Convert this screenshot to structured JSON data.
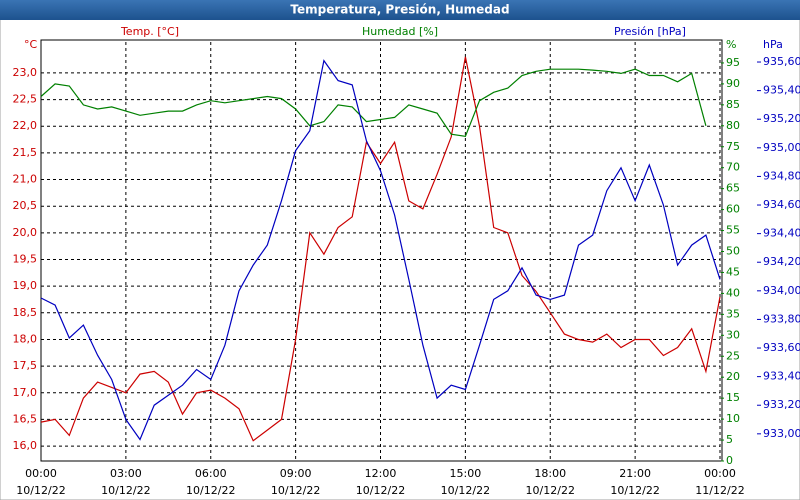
{
  "chart_data": {
    "type": "line",
    "title": "Temperatura, Presión, Humedad",
    "y_unit": "°C",
    "y2_unit": "%",
    "y3_unit": "hPa",
    "grid": true,
    "x": [
      0,
      0.5,
      1,
      1.5,
      2,
      2.5,
      3,
      3.5,
      4,
      4.5,
      5,
      5.5,
      6,
      6.5,
      7,
      7.5,
      8,
      8.5,
      9,
      9.5,
      10,
      10.5,
      11,
      11.5,
      12,
      12.5,
      13,
      13.5,
      14,
      14.5,
      15,
      15.5,
      16,
      16.5,
      17,
      17.5,
      18,
      18.5,
      19,
      19.5,
      20,
      20.5,
      21,
      21.5,
      22,
      22.5,
      23,
      23.5,
      24
    ],
    "xlim": [
      0,
      24
    ],
    "xticks": [
      {
        "value": 0,
        "label": "00:00",
        "date": "10/12/22"
      },
      {
        "value": 3,
        "label": "03:00",
        "date": "10/12/22"
      },
      {
        "value": 6,
        "label": "06:00",
        "date": "10/12/22"
      },
      {
        "value": 9,
        "label": "09:00",
        "date": "10/12/22"
      },
      {
        "value": 12,
        "label": "12:00",
        "date": "10/12/22"
      },
      {
        "value": 15,
        "label": "15:00",
        "date": "10/12/22"
      },
      {
        "value": 18,
        "label": "18:00",
        "date": "10/12/22"
      },
      {
        "value": 21,
        "label": "21:00",
        "date": "10/12/22"
      },
      {
        "value": 24,
        "label": "00:00",
        "date": "11/12/22"
      }
    ],
    "ylim": [
      15.72,
      23.58
    ],
    "yticks": [
      {
        "value": 16.0,
        "label": "16,0"
      },
      {
        "value": 16.5,
        "label": "16,5"
      },
      {
        "value": 17.0,
        "label": "17,0"
      },
      {
        "value": 17.5,
        "label": "17,5"
      },
      {
        "value": 18.0,
        "label": "18,0"
      },
      {
        "value": 18.5,
        "label": "18,5"
      },
      {
        "value": 19.0,
        "label": "19,0"
      },
      {
        "value": 19.5,
        "label": "19,5"
      },
      {
        "value": 20.0,
        "label": "20,0"
      },
      {
        "value": 20.5,
        "label": "20,5"
      },
      {
        "value": 21.0,
        "label": "21,0"
      },
      {
        "value": 21.5,
        "label": "21,5"
      },
      {
        "value": 22.0,
        "label": "22,0"
      },
      {
        "value": 22.5,
        "label": "22,5"
      },
      {
        "value": 23.0,
        "label": "23,0"
      }
    ],
    "y2lim": [
      0,
      100
    ],
    "y2ticks": [
      0,
      5,
      10,
      15,
      20,
      25,
      30,
      35,
      40,
      45,
      50,
      55,
      60,
      65,
      70,
      75,
      80,
      85,
      90,
      95
    ],
    "y3lim": [
      932.81,
      935.74
    ],
    "y3ticks": [
      {
        "value": 933.0,
        "label": "933,00"
      },
      {
        "value": 933.2,
        "label": "933,20"
      },
      {
        "value": 933.4,
        "label": "933,40"
      },
      {
        "value": 933.6,
        "label": "933,60"
      },
      {
        "value": 933.8,
        "label": "933,80"
      },
      {
        "value": 934.0,
        "label": "934,00"
      },
      {
        "value": 934.2,
        "label": "934,20"
      },
      {
        "value": 934.4,
        "label": "934,40"
      },
      {
        "value": 934.6,
        "label": "934,60"
      },
      {
        "value": 934.8,
        "label": "934,80"
      },
      {
        "value": 935.0,
        "label": "935,00"
      },
      {
        "value": 935.2,
        "label": "935,20"
      },
      {
        "value": 935.4,
        "label": "935,40"
      },
      {
        "value": 935.6,
        "label": "935,60"
      }
    ],
    "series": [
      {
        "name": "Temp. [°C]",
        "color": "#cc0000",
        "axis": "y",
        "values": [
          16.45,
          16.5,
          16.2,
          16.9,
          17.2,
          17.1,
          17.0,
          17.35,
          17.4,
          17.2,
          16.6,
          17.0,
          17.05,
          16.9,
          16.7,
          16.1,
          16.3,
          16.5,
          18.0,
          20.0,
          19.6,
          20.1,
          20.3,
          21.7,
          21.3,
          21.7,
          20.6,
          20.45,
          21.1,
          21.8,
          23.3,
          22.0,
          20.1,
          20.0,
          19.2,
          18.9,
          18.5,
          18.1,
          18.0,
          17.95,
          18.1,
          17.85,
          18.0,
          18.0,
          17.7,
          17.85,
          18.2,
          17.4,
          18.8
        ]
      },
      {
        "name": "Humedad [%]",
        "color": "#008000",
        "axis": "y2",
        "values": [
          87,
          90,
          89.5,
          85,
          84,
          84.5,
          83.5,
          82.5,
          83,
          83.5,
          83.5,
          85,
          86,
          85.5,
          86,
          86.5,
          87,
          86.5,
          84,
          80,
          81,
          85,
          84.5,
          81,
          81.5,
          82,
          85,
          84,
          83,
          78,
          77.5,
          86,
          88,
          89,
          92,
          93,
          93.5,
          93.5,
          93.5,
          93.3,
          93,
          92.5,
          93.5,
          92,
          92,
          90.5,
          92.5,
          80,
          null
        ]
      },
      {
        "name": "Presión [hPa]",
        "color": "#0000c0",
        "axis": "y3",
        "values": [
          933.95,
          933.9,
          933.67,
          933.76,
          933.55,
          933.38,
          933.1,
          932.96,
          933.2,
          933.27,
          933.34,
          933.45,
          933.38,
          933.62,
          934.0,
          934.18,
          934.32,
          934.63,
          934.98,
          935.12,
          935.61,
          935.47,
          935.44,
          935.05,
          934.84,
          934.53,
          934.08,
          933.62,
          933.25,
          933.34,
          933.31,
          933.62,
          933.94,
          934.0,
          934.16,
          933.97,
          933.94,
          933.97,
          934.32,
          934.39,
          934.7,
          934.86,
          934.63,
          934.88,
          934.6,
          934.18,
          934.32,
          934.39,
          934.08
        ]
      }
    ]
  }
}
